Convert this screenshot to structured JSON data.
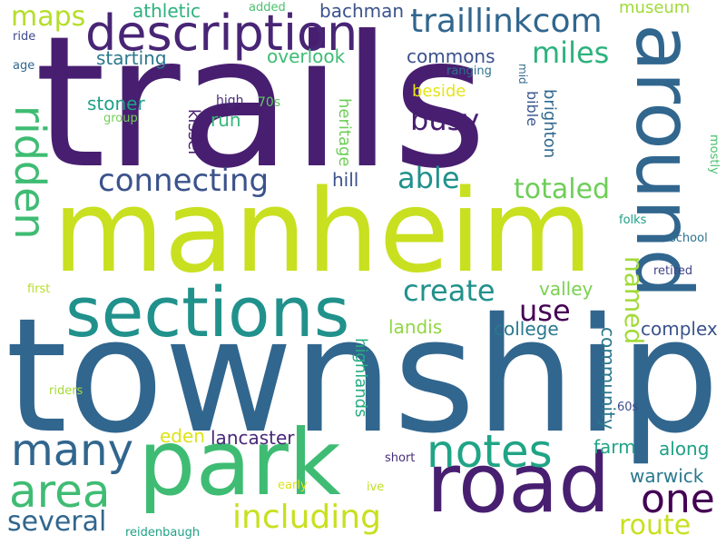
{
  "words": [
    {
      "text": "trails",
      "color": "#481f70",
      "vertical": false
    },
    {
      "text": "township",
      "color": "#31668e",
      "vertical": false
    },
    {
      "text": "manheim",
      "color": "#c8e020",
      "vertical": false
    },
    {
      "text": "park",
      "color": "#3fbc73",
      "vertical": false
    },
    {
      "text": "road",
      "color": "#481f70",
      "vertical": false
    },
    {
      "text": "sections",
      "color": "#21918c",
      "vertical": false
    },
    {
      "text": "around",
      "color": "#31668e",
      "vertical": true
    },
    {
      "text": "description",
      "color": "#482575",
      "vertical": false
    },
    {
      "text": "notes",
      "color": "#20a486",
      "vertical": false
    },
    {
      "text": "area",
      "color": "#3fbc73",
      "vertical": false
    },
    {
      "text": "many",
      "color": "#31668e",
      "vertical": false
    },
    {
      "text": "one",
      "color": "#440154",
      "vertical": false
    },
    {
      "text": "ridden",
      "color": "#3fbc73",
      "vertical": true
    },
    {
      "text": "including",
      "color": "#c8e020",
      "vertical": false
    },
    {
      "text": "traillinkcom",
      "color": "#31668e",
      "vertical": false
    },
    {
      "text": "connecting",
      "color": "#3b528b",
      "vertical": false
    },
    {
      "text": "create",
      "color": "#21918c",
      "vertical": false
    },
    {
      "text": "several",
      "color": "#31668e",
      "vertical": false
    },
    {
      "text": "route",
      "color": "#c8e020",
      "vertical": false
    },
    {
      "text": "able",
      "color": "#21918c",
      "vertical": false
    },
    {
      "text": "totaled",
      "color": "#6ece58",
      "vertical": false
    },
    {
      "text": "busy",
      "color": "#481f70",
      "vertical": false
    },
    {
      "text": "miles",
      "color": "#2db27d",
      "vertical": false
    },
    {
      "text": "use",
      "color": "#440154",
      "vertical": false
    },
    {
      "text": "maps",
      "color": "#b5de2b",
      "vertical": false
    },
    {
      "text": "named",
      "color": "#a2da37",
      "vertical": true
    },
    {
      "text": "complex",
      "color": "#3b528b",
      "vertical": false
    },
    {
      "text": "commons",
      "color": "#3b528b",
      "vertical": false
    },
    {
      "text": "lancaster",
      "color": "#482878",
      "vertical": false
    },
    {
      "text": "warwick",
      "color": "#2a788e",
      "vertical": false
    },
    {
      "text": "along",
      "color": "#1fa187",
      "vertical": false
    },
    {
      "text": "athletic",
      "color": "#2db27d",
      "vertical": false
    },
    {
      "text": "bachman",
      "color": "#3b528b",
      "vertical": false
    },
    {
      "text": "overlook",
      "color": "#3dbc74",
      "vertical": false
    },
    {
      "text": "starting",
      "color": "#2a788e",
      "vertical": false
    },
    {
      "text": "stoner",
      "color": "#1fa187",
      "vertical": false
    },
    {
      "text": "run",
      "color": "#35b779",
      "vertical": false
    },
    {
      "text": "hill",
      "color": "#3b528b",
      "vertical": false
    },
    {
      "text": "valley",
      "color": "#7ad151",
      "vertical": false
    },
    {
      "text": "landis",
      "color": "#90d743",
      "vertical": false
    },
    {
      "text": "college",
      "color": "#2a788e",
      "vertical": false
    },
    {
      "text": "community",
      "color": "#2a788e",
      "vertical": true
    },
    {
      "text": "highlands",
      "color": "#27ad81",
      "vertical": true
    },
    {
      "text": "eden",
      "color": "#dde318",
      "vertical": false
    },
    {
      "text": "farm",
      "color": "#20a486",
      "vertical": false
    },
    {
      "text": "museum",
      "color": "#a0da39",
      "vertical": false
    },
    {
      "text": "beside",
      "color": "#e5e419",
      "vertical": false
    },
    {
      "text": "heritage",
      "color": "#6ece58",
      "vertical": true
    },
    {
      "text": "kissel",
      "color": "#481f70",
      "vertical": true
    },
    {
      "text": "brighton",
      "color": "#31688e",
      "vertical": true
    },
    {
      "text": "bible",
      "color": "#39568c",
      "vertical": true
    },
    {
      "text": "high",
      "color": "#472d7b",
      "vertical": false
    },
    {
      "text": "70s",
      "color": "#5ec962",
      "vertical": false
    },
    {
      "text": "group",
      "color": "#73d056",
      "vertical": false
    },
    {
      "text": "ranging",
      "color": "#2c728e",
      "vertical": false
    },
    {
      "text": "mid",
      "color": "#31688e",
      "vertical": true
    },
    {
      "text": "mostly",
      "color": "#4ac16d",
      "vertical": true
    },
    {
      "text": "folks",
      "color": "#1f9e89",
      "vertical": false
    },
    {
      "text": "school",
      "color": "#2c728e",
      "vertical": false
    },
    {
      "text": "retired",
      "color": "#414487",
      "vertical": false
    },
    {
      "text": "first",
      "color": "#b8de29",
      "vertical": false
    },
    {
      "text": "riders",
      "color": "#a5db36",
      "vertical": false
    },
    {
      "text": "60s",
      "color": "#3e4a89",
      "vertical": false
    },
    {
      "text": "short",
      "color": "#472d7b",
      "vertical": false
    },
    {
      "text": "early",
      "color": "#dfe318",
      "vertical": false
    },
    {
      "text": "ive",
      "color": "#c2df23",
      "vertical": false
    },
    {
      "text": "reidenbaugh",
      "color": "#1fa187",
      "vertical": false
    },
    {
      "text": "added",
      "color": "#4ac16d",
      "vertical": false
    },
    {
      "text": "ride",
      "color": "#3e4a89",
      "vertical": false
    },
    {
      "text": "age",
      "color": "#31688e",
      "vertical": false
    }
  ]
}
